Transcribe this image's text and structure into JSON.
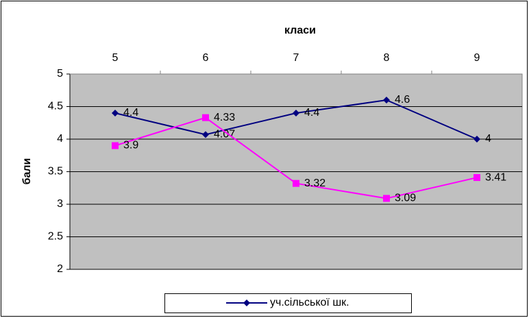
{
  "chart_data": {
    "type": "line",
    "x_label": "класи",
    "y_label": "бали",
    "categories": [
      "5",
      "6",
      "7",
      "8",
      "9"
    ],
    "series": [
      {
        "name": "уч.сільської шк.",
        "color": "#000080",
        "marker": "diamond",
        "values": [
          4.4,
          4.07,
          4.4,
          4.6,
          4
        ]
      },
      {
        "color": "#ff00ff",
        "marker": "square",
        "values": [
          3.9,
          4.33,
          3.32,
          3.09,
          3.41
        ]
      }
    ],
    "ylim": [
      2,
      5
    ],
    "yticks": [
      2,
      2.5,
      3,
      3.5,
      4,
      4.5,
      5
    ],
    "grid": true,
    "legend": "bottom"
  }
}
